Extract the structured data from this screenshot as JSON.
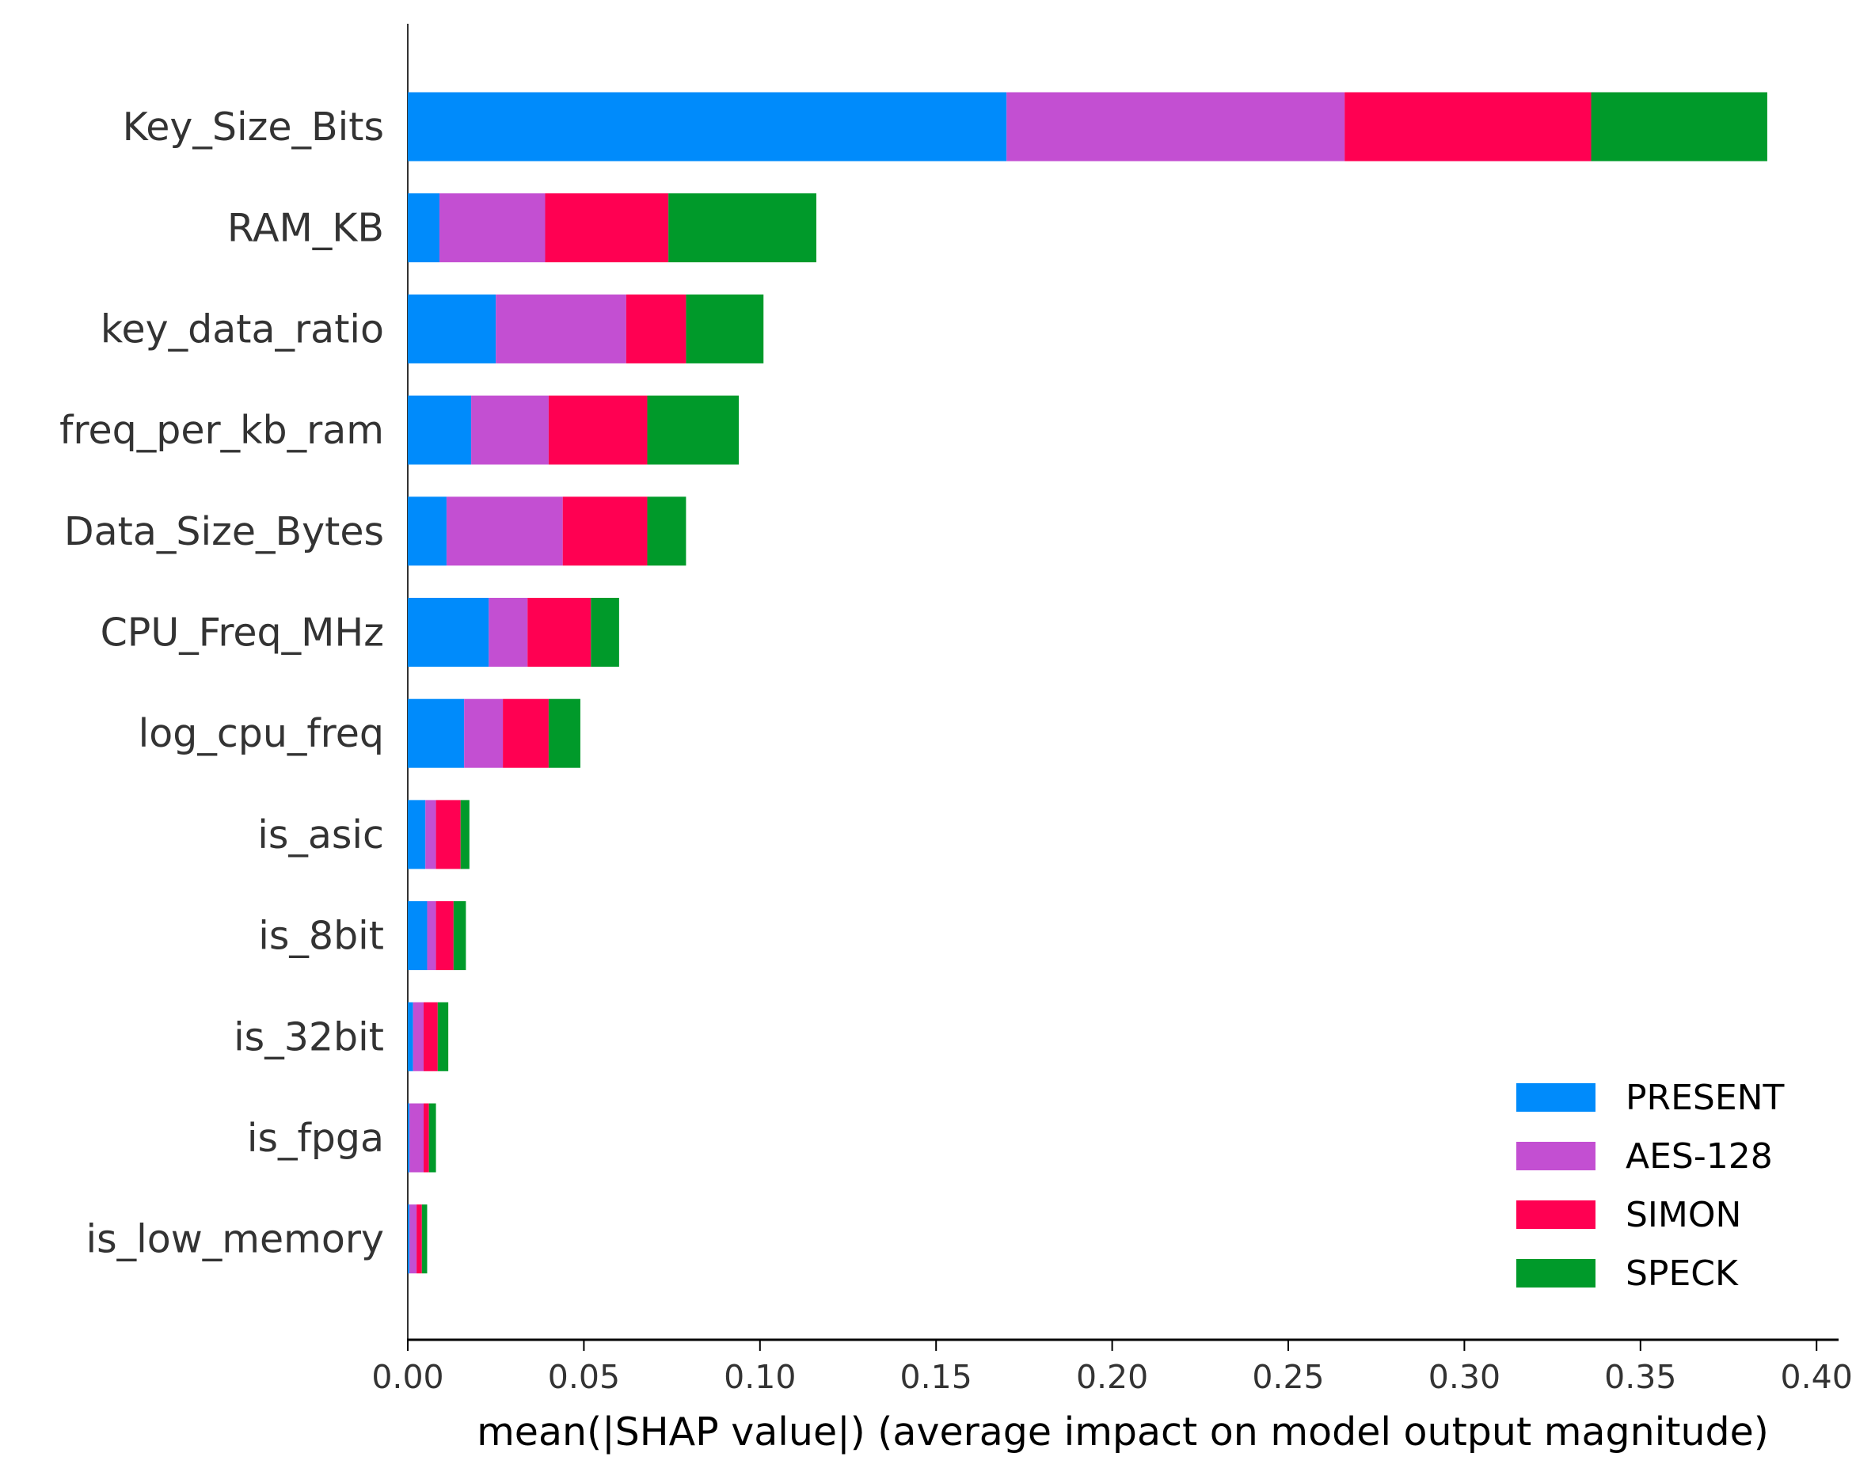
{
  "chart_data": {
    "type": "bar",
    "stacked": true,
    "orientation": "horizontal",
    "title": "",
    "xlabel": "mean(|SHAP value|) (average impact on model output magnitude)",
    "ylabel": "",
    "xlim": [
      0,
      0.405
    ],
    "xticks": [
      0.0,
      0.05,
      0.1,
      0.15,
      0.2,
      0.25,
      0.3,
      0.35,
      0.4
    ],
    "xtick_labels": [
      "0.00",
      "0.05",
      "0.10",
      "0.15",
      "0.20",
      "0.25",
      "0.30",
      "0.35",
      "0.40"
    ],
    "grid": false,
    "legend_position": "bottom-right",
    "categories": [
      "Key_Size_Bits",
      "RAM_KB",
      "key_data_ratio",
      "freq_per_kb_ram",
      "Data_Size_Bytes",
      "CPU_Freq_MHz",
      "log_cpu_freq",
      "is_asic",
      "is_8bit",
      "is_32bit",
      "is_fpga",
      "is_low_memory"
    ],
    "series": [
      {
        "name": "PRESENT",
        "color": "#008bfb",
        "values": [
          0.17,
          0.009,
          0.025,
          0.018,
          0.011,
          0.023,
          0.016,
          0.005,
          0.0055,
          0.0015,
          0.0005,
          0.0005
        ]
      },
      {
        "name": "AES-128",
        "color": "#c34fd2",
        "values": [
          0.096,
          0.03,
          0.037,
          0.022,
          0.033,
          0.011,
          0.011,
          0.003,
          0.0025,
          0.003,
          0.004,
          0.002
        ]
      },
      {
        "name": "SIMON",
        "color": "#ff0052",
        "values": [
          0.07,
          0.035,
          0.017,
          0.028,
          0.024,
          0.018,
          0.013,
          0.007,
          0.005,
          0.004,
          0.0015,
          0.0015
        ]
      },
      {
        "name": "SPECK",
        "color": "#009a2a",
        "values": [
          0.05,
          0.042,
          0.022,
          0.026,
          0.011,
          0.008,
          0.009,
          0.0025,
          0.0035,
          0.003,
          0.002,
          0.0015
        ]
      }
    ]
  }
}
